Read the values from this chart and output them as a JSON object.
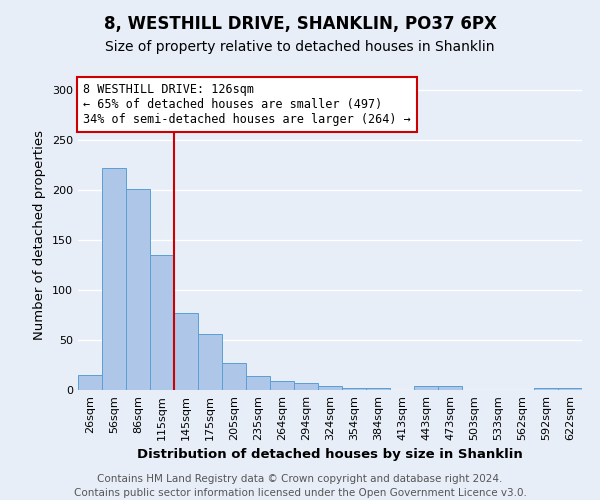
{
  "title": "8, WESTHILL DRIVE, SHANKLIN, PO37 6PX",
  "subtitle": "Size of property relative to detached houses in Shanklin",
  "xlabel": "Distribution of detached houses by size in Shanklin",
  "ylabel": "Number of detached properties",
  "footer_line1": "Contains HM Land Registry data © Crown copyright and database right 2024.",
  "footer_line2": "Contains public sector information licensed under the Open Government Licence v3.0.",
  "categories": [
    "26sqm",
    "56sqm",
    "86sqm",
    "115sqm",
    "145sqm",
    "175sqm",
    "205sqm",
    "235sqm",
    "264sqm",
    "294sqm",
    "324sqm",
    "354sqm",
    "384sqm",
    "413sqm",
    "443sqm",
    "473sqm",
    "503sqm",
    "533sqm",
    "562sqm",
    "592sqm",
    "622sqm"
  ],
  "values": [
    15,
    222,
    201,
    135,
    77,
    56,
    27,
    14,
    9,
    7,
    4,
    2,
    2,
    0,
    4,
    4,
    0,
    0,
    0,
    2,
    2
  ],
  "bar_color": "#aec6e8",
  "bar_edge_color": "#5a9fd4",
  "annotation_line1": "8 WESTHILL DRIVE: 126sqm",
  "annotation_line2": "← 65% of detached houses are smaller (497)",
  "annotation_line3": "34% of semi-detached houses are larger (264) →",
  "annotation_box_color": "#ffffff",
  "annotation_box_edge_color": "#cc0000",
  "vline_color": "#cc0000",
  "vline_x_index": 3.5,
  "ylim": [
    0,
    310
  ],
  "yticks": [
    0,
    50,
    100,
    150,
    200,
    250,
    300
  ],
  "background_color": "#e8eef8",
  "grid_color": "#ffffff",
  "title_fontsize": 12,
  "subtitle_fontsize": 10,
  "axis_label_fontsize": 9.5,
  "tick_fontsize": 8,
  "annotation_fontsize": 8.5,
  "footer_fontsize": 7.5
}
